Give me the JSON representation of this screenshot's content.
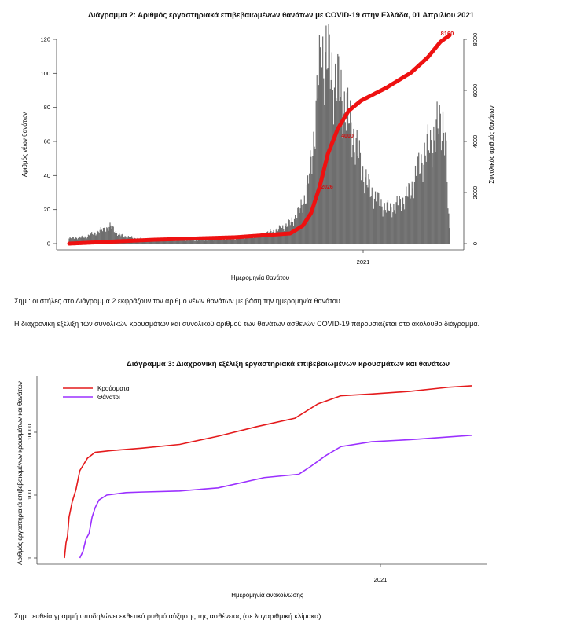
{
  "figure2": {
    "title": "Διάγραμμα 2: Αριθμός εργαστηριακά επιβεβαιωμένων θανάτων με COVID-19 στην Ελλάδα, 01 Απριλίου 2021",
    "note": "Σημ.: οι στήλες στο Διάγραμμα 2 εκφράζουν τον αριθμό νέων θανάτων με βάση την ημερομηνία θανάτου"
  },
  "paragraph": "Η διαχρονική εξέλιξη των συνολικών κρουσμάτων και συνολικού αριθμού των θανάτων ασθενών COVID-19 παρουσιάζεται στο ακόλουθο διάγραμμα.",
  "figure3": {
    "title": "Διάγραμμα 3: Διαχρονική εξέλιξη εργαστηριακά επιβεβαιωμένων κρουσμάτων και θανάτων",
    "note": "Σημ.: ευθεία γραμμή υποδηλώνει εκθετικό ρυθμό αύξησης της ασθένειας (σε λογαριθμική κλίμακα)"
  },
  "colors": {
    "bars": "#6e6e6e",
    "cumulative": "#ee1111",
    "cases": "#e41a1c",
    "deaths": "#9b30ff"
  },
  "chart_data": [
    {
      "type": "bar",
      "title": "Διάγραμμα 2: Αριθμός εργαστηριακά επιβεβαιωμένων θανάτων με COVID-19 στην Ελλάδα, 01 Απριλίου 2021",
      "xlabel": "Ημερομηνία θανάτου",
      "ylabel": "Αριθμός νέων θανάτων",
      "y2label": "Συνολικός αριθμός θανάτων",
      "ylim": [
        0,
        120
      ],
      "y2lim": [
        0,
        8000
      ],
      "yticks": [
        0,
        20,
        40,
        60,
        80,
        100,
        120
      ],
      "y2ticks": [
        0,
        2000,
        4000,
        6000,
        8000
      ],
      "x_tick": "2021",
      "daily_anchors": [
        [
          0,
          3
        ],
        [
          20,
          4
        ],
        [
          40,
          8
        ],
        [
          50,
          10
        ],
        [
          60,
          5
        ],
        [
          80,
          3
        ],
        [
          120,
          2
        ],
        [
          160,
          2
        ],
        [
          200,
          3
        ],
        [
          230,
          5
        ],
        [
          250,
          8
        ],
        [
          265,
          12
        ],
        [
          275,
          18
        ],
        [
          285,
          30
        ],
        [
          292,
          55
        ],
        [
          298,
          90
        ],
        [
          303,
          110
        ],
        [
          308,
          112
        ],
        [
          314,
          100
        ],
        [
          322,
          92
        ],
        [
          330,
          82
        ],
        [
          338,
          68
        ],
        [
          345,
          55
        ],
        [
          352,
          42
        ],
        [
          360,
          32
        ],
        [
          368,
          26
        ],
        [
          376,
          22
        ],
        [
          384,
          20
        ],
        [
          392,
          22
        ],
        [
          400,
          25
        ],
        [
          408,
          30
        ],
        [
          416,
          40
        ],
        [
          424,
          50
        ],
        [
          432,
          58
        ],
        [
          440,
          65
        ],
        [
          444,
          70
        ],
        [
          448,
          72
        ],
        [
          451,
          62
        ],
        [
          454,
          22
        ],
        [
          456,
          8
        ]
      ],
      "cumulative_anchors": [
        [
          0,
          0
        ],
        [
          100,
          150
        ],
        [
          200,
          250
        ],
        [
          265,
          400
        ],
        [
          280,
          700
        ],
        [
          290,
          1200
        ],
        [
          300,
          2200
        ],
        [
          310,
          3500
        ],
        [
          322,
          4500
        ],
        [
          335,
          5200
        ],
        [
          350,
          5600
        ],
        [
          380,
          6100
        ],
        [
          410,
          6700
        ],
        [
          430,
          7300
        ],
        [
          445,
          7900
        ],
        [
          456,
          8160
        ]
      ],
      "cumulative_labels": [
        "2026",
        "4000",
        "8160"
      ]
    },
    {
      "type": "line",
      "title": "Διάγραμμα 3: Διαχρονική εξέλιξη εργαστηριακά επιβεβαιωμένων κρουσμάτων και θανάτων",
      "xlabel": "Ημερομηνία ανακοίνωσης",
      "ylabel": "Αριθμός εργαστηριακά επιβεβαιωμένων κρουσμάτων και θανάτων",
      "y_scale": "log",
      "yticks": [
        1,
        100,
        10000
      ],
      "x_tick": "2021",
      "series": [
        {
          "name": "Κρούσματα",
          "points": [
            [
              0,
              1
            ],
            [
              2,
              3
            ],
            [
              4,
              5
            ],
            [
              6,
              20
            ],
            [
              10,
              60
            ],
            [
              15,
              150
            ],
            [
              20,
              600
            ],
            [
              30,
              1500
            ],
            [
              40,
              2300
            ],
            [
              60,
              2600
            ],
            [
              100,
              3100
            ],
            [
              150,
              4100
            ],
            [
              200,
              7500
            ],
            [
              250,
              15000
            ],
            [
              300,
              28000
            ],
            [
              330,
              80000
            ],
            [
              360,
              145000
            ],
            [
              400,
              165000
            ],
            [
              450,
              200000
            ],
            [
              500,
              270000
            ],
            [
              530,
              300000
            ]
          ]
        },
        {
          "name": "Θάνατοι",
          "points": [
            [
              20,
              1
            ],
            [
              24,
              1.6
            ],
            [
              28,
              4
            ],
            [
              32,
              6
            ],
            [
              36,
              20
            ],
            [
              40,
              40
            ],
            [
              45,
              70
            ],
            [
              55,
              100
            ],
            [
              80,
              120
            ],
            [
              100,
              125
            ],
            [
              150,
              135
            ],
            [
              200,
              170
            ],
            [
              260,
              360
            ],
            [
              305,
              460
            ],
            [
              320,
              800
            ],
            [
              340,
              1800
            ],
            [
              360,
              3500
            ],
            [
              400,
              5000
            ],
            [
              450,
              5800
            ],
            [
              500,
              7100
            ],
            [
              530,
              8000
            ]
          ]
        }
      ],
      "legend": "top-left"
    }
  ]
}
